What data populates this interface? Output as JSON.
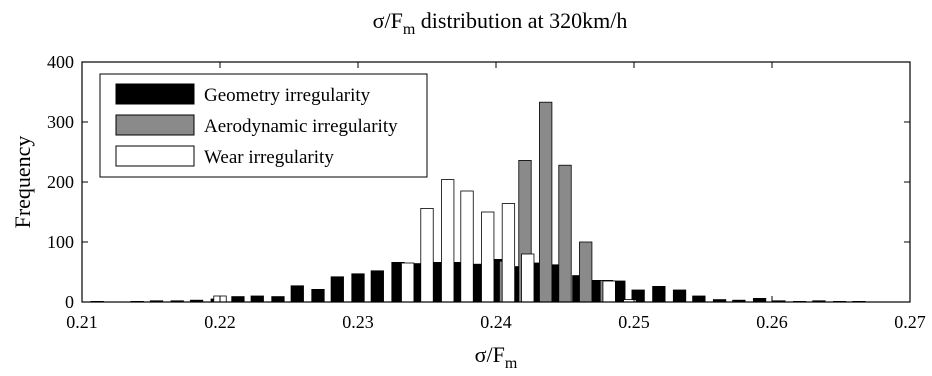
{
  "chart_data": {
    "type": "bar",
    "title_main": "σ/F",
    "title_sub": "m",
    "title_rest": " distribution at 320km/h",
    "xlabel_main": "σ/F",
    "xlabel_sub": "m",
    "ylabel": "Frequency",
    "xlim": [
      0.21,
      0.27
    ],
    "ylim": [
      0,
      400
    ],
    "xticks": [
      0.21,
      0.22,
      0.23,
      0.24,
      0.25,
      0.26,
      0.27
    ],
    "xtick_labels": [
      "0.21",
      "0.22",
      "0.23",
      "0.24",
      "0.25",
      "0.26",
      "0.27"
    ],
    "yticks": [
      0,
      100,
      200,
      300,
      400
    ],
    "ytick_labels": [
      "0",
      "100",
      "200",
      "300",
      "400"
    ],
    "grid": false,
    "legend_position": "top-left",
    "bin_width": 0.001455,
    "series": [
      {
        "name": "Geometry irregularity",
        "color": "#000000",
        "x": [
          0.2111,
          0.214,
          0.2154,
          0.2169,
          0.2183,
          0.2198,
          0.2213,
          0.2227,
          0.2242,
          0.2256,
          0.2271,
          0.2285,
          0.23,
          0.2314,
          0.2329,
          0.2344,
          0.2358,
          0.2373,
          0.2387,
          0.2402,
          0.2416,
          0.2431,
          0.2445,
          0.246,
          0.2474,
          0.2489,
          0.2503,
          0.2518,
          0.2533,
          0.2547,
          0.2562,
          0.2576,
          0.2591,
          0.2605,
          0.262,
          0.2634,
          0.2649,
          0.2663
        ],
        "values": [
          1,
          1,
          2,
          2,
          3,
          5,
          9,
          10,
          9,
          27,
          21,
          42,
          47,
          52,
          66,
          64,
          66,
          66,
          63,
          71,
          59,
          65,
          62,
          44,
          36,
          35,
          20,
          26,
          20,
          10,
          4,
          3,
          6,
          2,
          1,
          2,
          1,
          1
        ]
      },
      {
        "name": "Aerodynamic irregularity",
        "color": "#8a8a8a",
        "x": [
          0.2407,
          0.2421,
          0.2436,
          0.245,
          0.2465,
          0.248
        ],
        "values": [
          68,
          236,
          333,
          228,
          100,
          36
        ]
      },
      {
        "name": "Wear irregularity",
        "color": "#ffffff",
        "x": [
          0.22,
          0.2336,
          0.235,
          0.2365,
          0.2379,
          0.2394,
          0.2409,
          0.2423,
          0.2482,
          0.2497
        ],
        "values": [
          10,
          65,
          156,
          204,
          185,
          150,
          164,
          80,
          35,
          4
        ]
      }
    ]
  }
}
